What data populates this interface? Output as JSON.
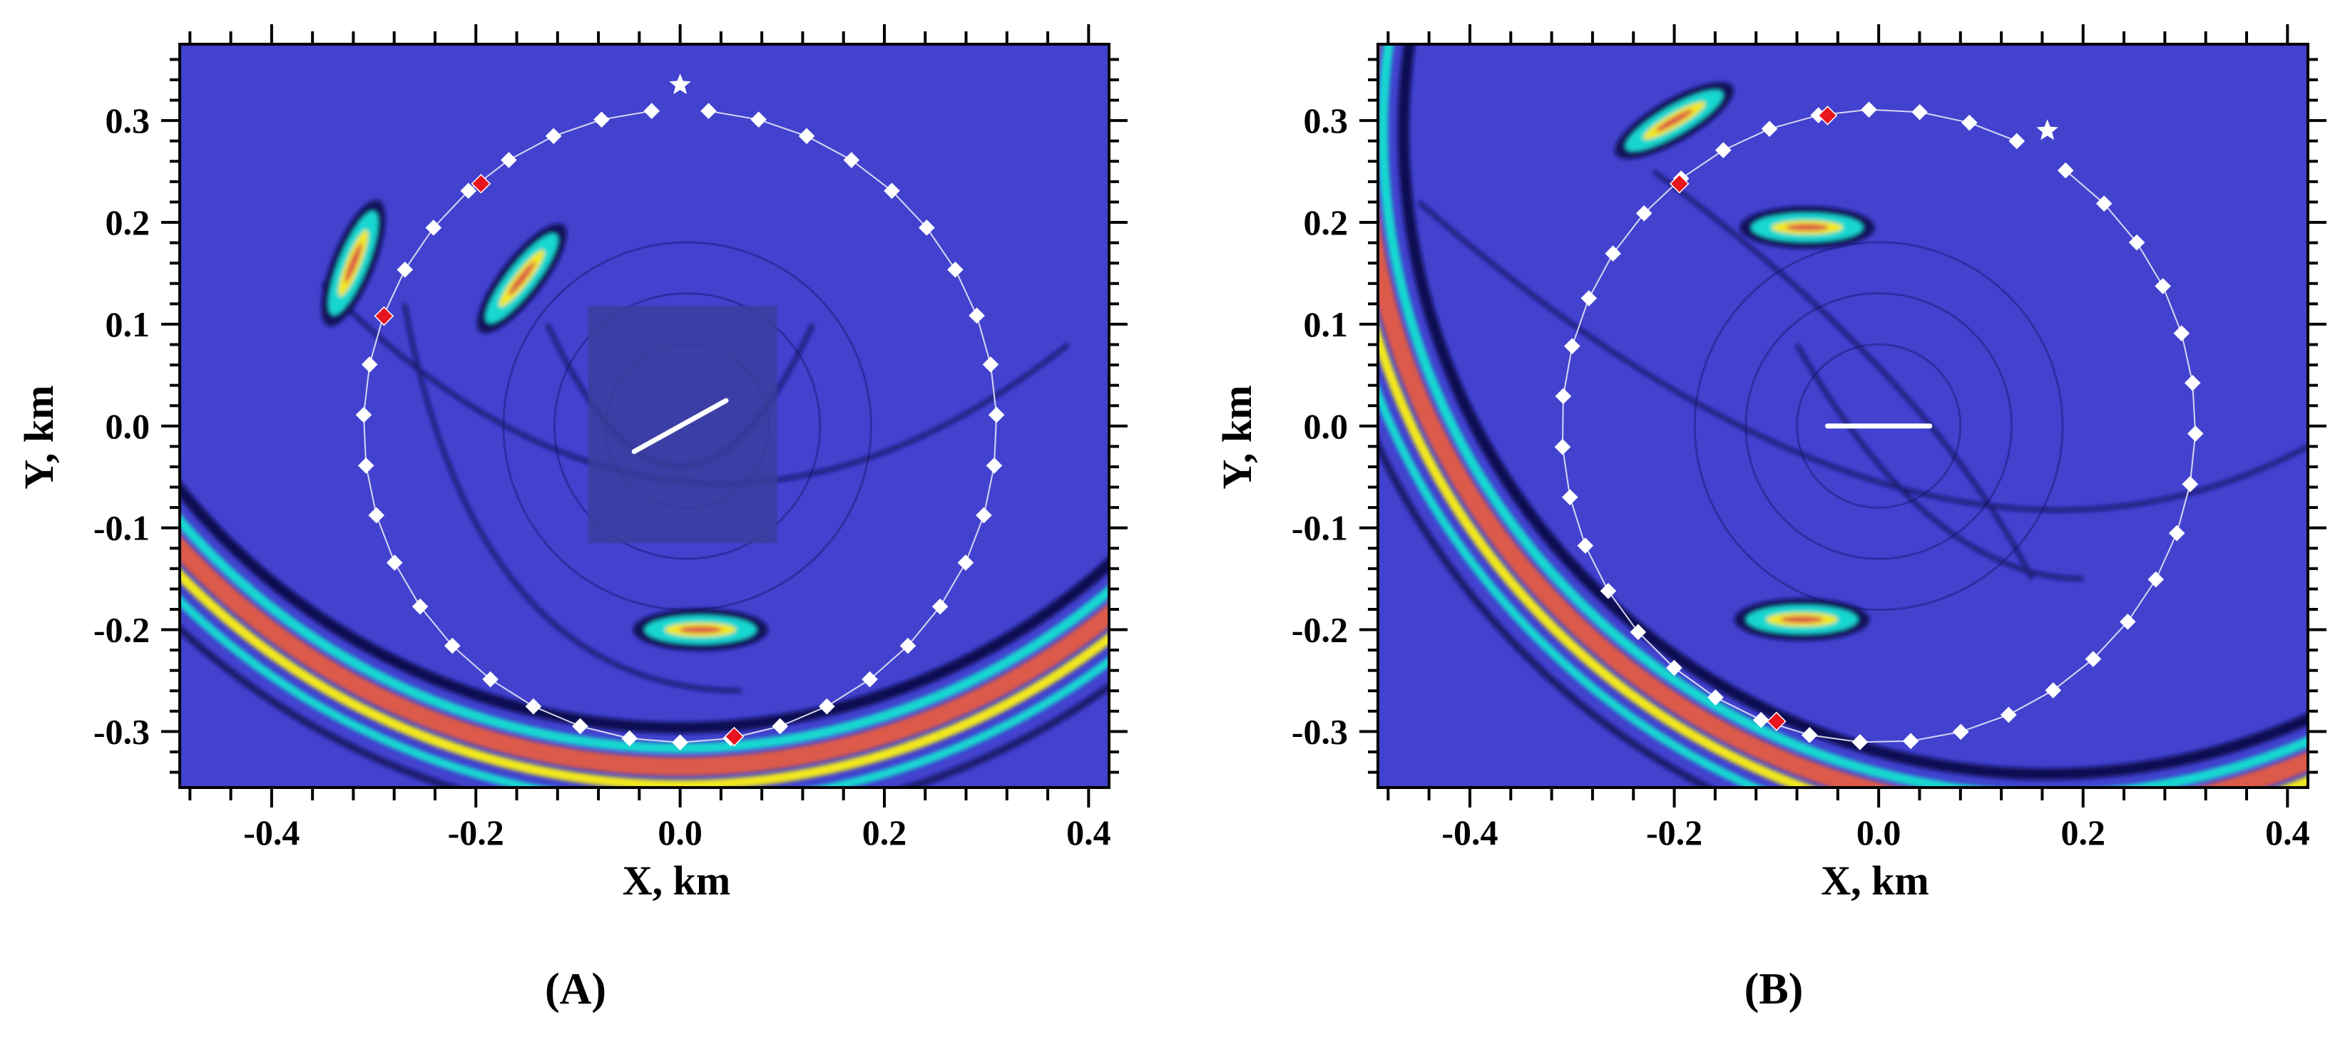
{
  "figure": {
    "colors": {
      "background_field": "#4242cf",
      "wave_dark": "#0a0a52",
      "wave_cyan": "#19d8d0",
      "wave_yellow": "#f2e81f",
      "wave_red": "#dc5a4a",
      "receiver_white": "#ffffff",
      "receiver_red": "#e8141e",
      "source_star": "#ffffff",
      "fracture": "#ffffff",
      "highlight_box": "#3a3e9a"
    }
  },
  "chart_data": [
    {
      "type": "scatter",
      "panel_label": "(A)",
      "title": "",
      "xlabel": "X, km",
      "ylabel": "Y, km",
      "xlim": [
        -0.49,
        0.42
      ],
      "ylim": [
        -0.355,
        0.375
      ],
      "xticks": [
        -0.4,
        -0.2,
        0.0,
        0.2,
        0.4
      ],
      "xtick_labels": [
        "-0.4",
        "-0.2",
        "0.0",
        "0.2",
        "0.4"
      ],
      "yticks": [
        -0.3,
        -0.2,
        -0.1,
        0.0,
        0.1,
        0.2,
        0.3
      ],
      "ytick_labels": [
        "-0.3",
        "-0.2",
        "-0.1",
        "0.0",
        "0.1",
        "0.2",
        "0.3"
      ],
      "receiver_ring": {
        "center": [
          0.0,
          0.0
        ],
        "radius": 0.31,
        "count": 38,
        "gap_angle_deg": 90
      },
      "red_receivers": [
        [
          -0.195,
          0.238
        ],
        [
          -0.29,
          0.108
        ],
        [
          0.053,
          -0.305
        ]
      ],
      "source_star": [
        0.0,
        0.335
      ],
      "fracture_segment": [
        [
          -0.045,
          -0.025
        ],
        [
          0.045,
          0.025
        ]
      ],
      "highlight_box": {
        "x": [
          -0.09,
          0.095
        ],
        "y": [
          -0.115,
          0.118
        ]
      },
      "wavefront_arc": {
        "center": [
          0.0,
          0.335
        ],
        "radii": [
          0.63,
          0.65,
          0.668,
          0.686,
          0.704
        ]
      },
      "scattered_packets": [
        {
          "x": -0.155,
          "y": 0.145,
          "angle": -52
        },
        {
          "x": 0.02,
          "y": -0.2,
          "angle": 0
        },
        {
          "x": -0.32,
          "y": 0.16,
          "angle": -68
        }
      ]
    },
    {
      "type": "scatter",
      "panel_label": "(B)",
      "title": "",
      "xlabel": "X, km",
      "ylabel": "Y, km",
      "xlim": [
        -0.49,
        0.42
      ],
      "ylim": [
        -0.355,
        0.375
      ],
      "xticks": [
        -0.4,
        -0.2,
        0.0,
        0.2,
        0.4
      ],
      "xtick_labels": [
        "-0.4",
        "-0.2",
        "0.0",
        "0.2",
        "0.4"
      ],
      "yticks": [
        -0.3,
        -0.2,
        -0.1,
        0.0,
        0.1,
        0.2,
        0.3
      ],
      "ytick_labels": [
        "-0.3",
        "-0.2",
        "-0.1",
        "0.0",
        "0.1",
        "0.2",
        "0.3"
      ],
      "receiver_ring": {
        "center": [
          0.0,
          0.0
        ],
        "radius": 0.31,
        "count": 38,
        "gap_angle_deg": 59
      },
      "red_receivers": [
        [
          -0.05,
          0.305
        ],
        [
          -0.195,
          0.238
        ],
        [
          -0.1,
          -0.29
        ]
      ],
      "source_star": [
        0.165,
        0.29
      ],
      "fracture_segment": [
        [
          -0.05,
          0.0
        ],
        [
          0.05,
          0.0
        ]
      ],
      "highlight_box": null,
      "wavefront_arc": {
        "center": [
          0.165,
          0.29
        ],
        "radii": [
          0.63,
          0.65,
          0.668,
          0.686,
          0.704
        ]
      },
      "scattered_packets": [
        {
          "x": -0.07,
          "y": 0.195,
          "angle": 0
        },
        {
          "x": -0.075,
          "y": -0.19,
          "angle": 0
        },
        {
          "x": -0.2,
          "y": 0.3,
          "angle": -30
        }
      ]
    }
  ]
}
